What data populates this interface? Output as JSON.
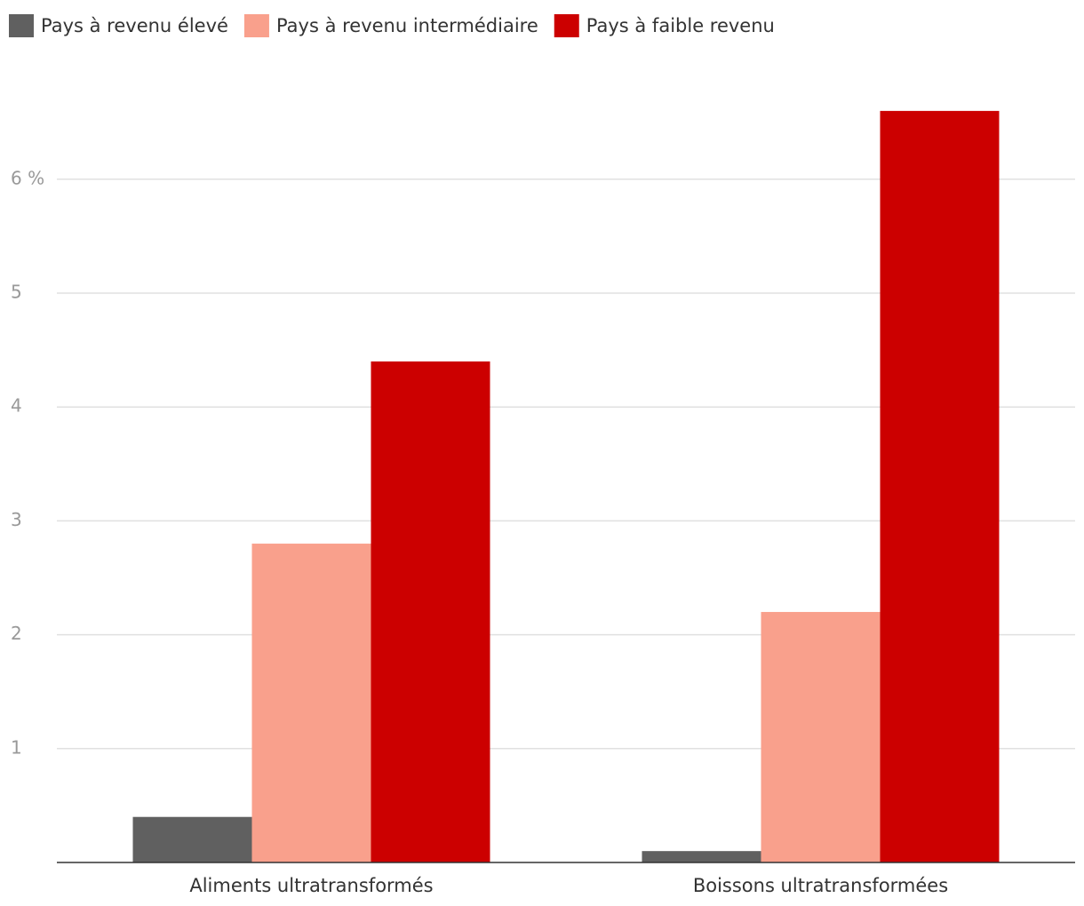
{
  "chart_data": {
    "type": "bar",
    "categories": [
      "Aliments ultratransformés",
      "Boissons ultratransformées"
    ],
    "series": [
      {
        "name": "Pays à revenu élevé",
        "color": "#606060",
        "values": [
          0.4,
          0.1
        ]
      },
      {
        "name": "Pays à revenu intermédiaire",
        "color": "#f9a08c",
        "values": [
          2.8,
          2.2
        ]
      },
      {
        "name": "Pays à faible revenu",
        "color": "#cc0000",
        "values": [
          4.4,
          6.6
        ]
      }
    ],
    "ylim": [
      0,
      7
    ],
    "yticks": [
      1,
      2,
      3,
      4,
      5,
      {
        "value": 6,
        "label": "6 %"
      }
    ],
    "grid": true
  }
}
